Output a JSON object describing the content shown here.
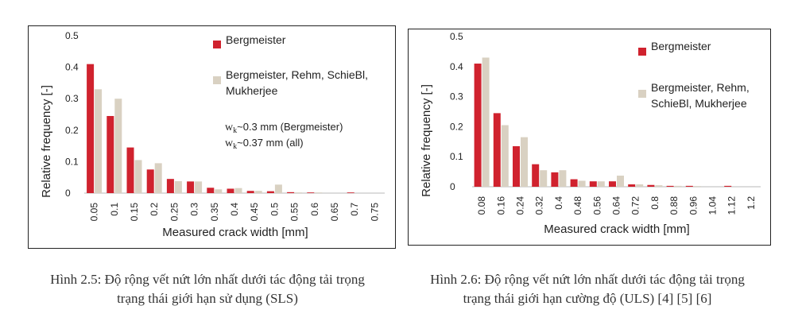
{
  "colors": {
    "series1": "#d0222e",
    "series2": "#d9d1c2",
    "axis": "#d0d0d0"
  },
  "chart_data": [
    {
      "type": "bar",
      "title": "",
      "xlabel": "Measured crack width [mm]",
      "ylabel": "Relative frequency [-]",
      "ylim": [
        0,
        0.5
      ],
      "yticks": [
        "0",
        "0.1",
        "0.2",
        "0.3",
        "0.4",
        "0.5"
      ],
      "categories": [
        "0.05",
        "0.1",
        "0.15",
        "0.2",
        "0.25",
        "0.3",
        "0.35",
        "0.4",
        "0.45",
        "0.5",
        "0.55",
        "0.6",
        "0.65",
        "0.7",
        "0.75"
      ],
      "series": [
        {
          "name": "Bergmeister",
          "values": [
            0.41,
            0.245,
            0.145,
            0.075,
            0.045,
            0.037,
            0.017,
            0.014,
            0.007,
            0.006,
            0.003,
            0.002,
            0,
            0.002,
            0
          ]
        },
        {
          "name": "Bergmeister, Rehm, SchieBl, Mukherjee",
          "values": [
            0.33,
            0.3,
            0.105,
            0.095,
            0.038,
            0.037,
            0.012,
            0.016,
            0.007,
            0.027,
            0.002,
            0.002,
            0,
            0,
            0
          ]
        }
      ],
      "legend_position": "top-right",
      "annotations": [
        "wk~0.3 mm (Bergmeister)",
        "wk~0.37 mm (all)"
      ],
      "caption": [
        "Hình 2.5: Độ rộng vết nứt lớn nhất dưới tác động tải trọng",
        "trạng thái giới hạn sử dụng (SLS)"
      ]
    },
    {
      "type": "bar",
      "title": "",
      "xlabel": "Measured crack width [mm]",
      "ylabel": "Relative frequency [-]",
      "ylim": [
        0,
        0.5
      ],
      "yticks": [
        "0",
        "0.1",
        "0.2",
        "0.3",
        "0.4",
        "0.5"
      ],
      "categories": [
        "0.08",
        "0.16",
        "0.24",
        "0.32",
        "0.4",
        "0.48",
        "0.56",
        "0.64",
        "0.72",
        "0.8",
        "0.88",
        "0.96",
        "1.04",
        "1.12",
        "1.2"
      ],
      "series": [
        {
          "name": "Bergmeister",
          "values": [
            0.41,
            0.245,
            0.135,
            0.075,
            0.048,
            0.025,
            0.018,
            0.018,
            0.008,
            0.006,
            0.003,
            0.003,
            0,
            0.003,
            0
          ]
        },
        {
          "name": "Bergmeister, Rehm, SchieBl, Mukherjee",
          "values": [
            0.43,
            0.205,
            0.165,
            0.055,
            0.055,
            0.02,
            0.018,
            0.037,
            0.008,
            0.005,
            0.003,
            0.002,
            0,
            0,
            0
          ]
        }
      ],
      "legend_position": "top-right",
      "annotations": [],
      "caption": [
        "Hình 2.6: Độ rộng vết nứt lớn nhất dưới tác động tải trọng",
        "trạng thái giới hạn cường độ (ULS) [4] [5] [6]"
      ]
    }
  ]
}
